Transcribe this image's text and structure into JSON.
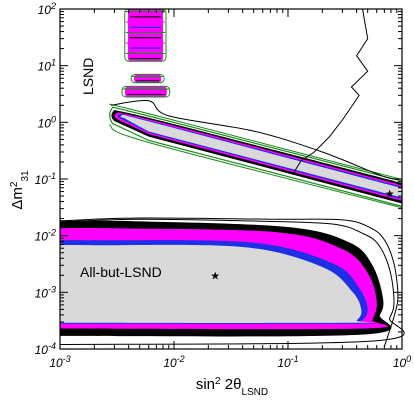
{
  "chart_data": {
    "type": "contour",
    "x_scale": "log",
    "y_scale": "log",
    "xlim": [
      0.001,
      1
    ],
    "ylim": [
      0.0001,
      100
    ],
    "xlabel": {
      "main": "sin",
      "sup": "2",
      "mid": " 2θ",
      "sub": "LSND"
    },
    "ylabel": {
      "main": "Δm",
      "sup": "2",
      "sub": "31"
    },
    "x_ticks": [
      {
        "value": 0.001,
        "base": "10",
        "exp": "-3"
      },
      {
        "value": 0.01,
        "base": "10",
        "exp": "-2"
      },
      {
        "value": 0.1,
        "base": "10",
        "exp": "-1"
      },
      {
        "value": 1,
        "base": "10",
        "exp": "0"
      }
    ],
    "y_ticks": [
      {
        "value": 0.0001,
        "base": "10",
        "exp": "-4"
      },
      {
        "value": 0.001,
        "base": "10",
        "exp": "-3"
      },
      {
        "value": 0.01,
        "base": "10",
        "exp": "-2"
      },
      {
        "value": 0.1,
        "base": "10",
        "exp": "-1"
      },
      {
        "value": 1,
        "base": "10",
        "exp": "0"
      },
      {
        "value": 10,
        "base": "10",
        "exp": "1"
      },
      {
        "value": 100,
        "base": "10",
        "exp": "2"
      }
    ],
    "annotations": [
      {
        "text": "LSND",
        "color": "#1a8c1a"
      },
      {
        "text": "All-but-LSND",
        "color": "#000000"
      }
    ],
    "markers": [
      {
        "name": "best-fit-combined",
        "symbol": "★",
        "x": 0.78,
        "y": 0.055
      },
      {
        "name": "best-fit-all-but-lsnd",
        "symbol": "★",
        "x": 0.023,
        "y": 0.002
      }
    ],
    "region_colors": {
      "innermost": "#d9d9d9",
      "blue": "#1f2fe6",
      "magenta": "#ff00ff",
      "black": "#000000",
      "lsnd": "#1a8c1a",
      "outline": "#000000"
    },
    "lower_region": {
      "levels": [
        {
          "name": "black",
          "color": "#000000",
          "x_left": 0.001,
          "y_top": 0.018,
          "y_bottom": 0.00017,
          "curve": [
            [
              0.0045,
              0.018
            ],
            [
              0.1,
              0.0142
            ],
            [
              0.35,
              0.0075
            ],
            [
              0.55,
              0.003
            ],
            [
              0.68,
              0.0008
            ],
            [
              0.64,
              0.0004
            ],
            [
              0.46,
              0.00018
            ],
            [
              0.001,
              0.00017
            ]
          ]
        },
        {
          "name": "magenta",
          "color": "#ff00ff",
          "x_left": 0.001,
          "y_top": 0.0135,
          "y_bottom": 0.00023,
          "curve": [
            [
              0.003,
              0.0135
            ],
            [
              0.08,
              0.0115
            ],
            [
              0.3,
              0.0058
            ],
            [
              0.5,
              0.0022
            ],
            [
              0.6,
              0.0007
            ],
            [
              0.55,
              0.00033
            ],
            [
              0.45,
              0.00023
            ],
            [
              0.001,
              0.00023
            ]
          ]
        },
        {
          "name": "blue",
          "color": "#1f2fe6",
          "x_left": 0.001,
          "y_top": 0.0083,
          "y_bottom": 0.00028,
          "curve": [
            [
              0.002,
              0.0083
            ],
            [
              0.05,
              0.0075
            ],
            [
              0.25,
              0.0032
            ],
            [
              0.42,
              0.0012
            ],
            [
              0.5,
              0.0005
            ],
            [
              0.44,
              0.00031
            ],
            [
              0.36,
              0.00028
            ],
            [
              0.001,
              0.00028
            ]
          ]
        },
        {
          "name": "innermost",
          "color": "#d9d9d9",
          "x_left": 0.001,
          "y_top": 0.0068,
          "y_bottom": 0.00029,
          "curve": [
            [
              0.002,
              0.0068
            ],
            [
              0.04,
              0.0063
            ],
            [
              0.2,
              0.0028
            ],
            [
              0.37,
              0.001
            ],
            [
              0.44,
              0.00048
            ],
            [
              0.4,
              0.00032
            ],
            [
              0.33,
              0.00029
            ],
            [
              0.001,
              0.00029
            ]
          ]
        }
      ]
    },
    "upper_band": {
      "center_line": [
        [
          0.0032,
          1.25
        ],
        [
          0.007,
          0.9
        ],
        [
          0.1,
          0.29
        ],
        [
          1.0,
          0.06
        ]
      ],
      "levels": [
        {
          "name": "lsnd",
          "color": "#1a8c1a",
          "upper": [
            [
              0.0029,
              1.85
            ],
            [
              0.009,
              1.05
            ],
            [
              1.0,
              0.092
            ]
          ],
          "lower": [
            [
              0.0029,
              0.95
            ],
            [
              0.006,
              0.48
            ],
            [
              1.0,
              0.033
            ]
          ]
        },
        {
          "name": "black",
          "color": "#000000",
          "upper": [
            [
              0.003,
              1.65
            ],
            [
              0.009,
              0.98
            ],
            [
              1.0,
              0.085
            ]
          ],
          "lower": [
            [
              0.003,
              1.05
            ],
            [
              0.006,
              0.56
            ],
            [
              1.0,
              0.037
            ]
          ]
        },
        {
          "name": "magenta",
          "color": "#ff00ff",
          "upper": [
            [
              0.0032,
              1.5
            ],
            [
              0.009,
              0.92
            ],
            [
              1.0,
              0.078
            ]
          ],
          "lower": [
            [
              0.0032,
              1.12
            ],
            [
              0.006,
              0.62
            ],
            [
              1.0,
              0.041
            ]
          ]
        },
        {
          "name": "blue",
          "color": "#1f2fe6",
          "upper": [
            [
              0.0034,
              1.4
            ],
            [
              0.009,
              0.87
            ],
            [
              1.0,
              0.073
            ]
          ],
          "lower": [
            [
              0.0034,
              1.17
            ],
            [
              0.006,
              0.66
            ],
            [
              1.0,
              0.044
            ]
          ]
        },
        {
          "name": "innermost",
          "color": "#d9d9d9",
          "upper": [
            [
              0.0036,
              1.35
            ],
            [
              0.009,
              0.84
            ],
            [
              1.0,
              0.069
            ]
          ],
          "lower": [
            [
              0.0036,
              1.2
            ],
            [
              0.006,
              0.69
            ],
            [
              1.0,
              0.047
            ]
          ]
        }
      ]
    },
    "islands": [
      {
        "x": [
          0.0035,
          0.0092
        ],
        "y": [
          2.8,
          4.3
        ]
      },
      {
        "x": [
          0.0042,
          0.0082
        ],
        "y": [
          5.0,
          7.0
        ]
      },
      {
        "x": [
          0.0037,
          0.0085
        ],
        "y": [
          12.0,
          100.0
        ]
      }
    ],
    "outline_curves": [
      {
        "name": "lower-outline-1",
        "points": [
          [
            0.001,
            0.0175
          ],
          [
            0.005,
            0.0195
          ],
          [
            0.06,
            0.018
          ],
          [
            0.25,
            0.016
          ],
          [
            0.45,
            0.011
          ],
          [
            0.62,
            0.007
          ],
          [
            0.78,
            0.0025
          ],
          [
            0.85,
            0.0007
          ],
          [
            0.78,
            0.00035
          ],
          [
            0.6,
            0.00014
          ],
          [
            0.001,
            0.00012
          ]
        ]
      },
      {
        "name": "lower-outline-2",
        "points": [
          [
            0.001,
            0.0182
          ],
          [
            0.005,
            0.0205
          ],
          [
            0.07,
            0.0195
          ],
          [
            0.3,
            0.019
          ],
          [
            0.52,
            0.014
          ],
          [
            0.7,
            0.0085
          ],
          [
            0.85,
            0.0032
          ],
          [
            0.92,
            0.0009
          ],
          [
            0.86,
            0.0004
          ],
          [
            0.7,
            0.00011
          ]
        ]
      },
      {
        "name": "middle-outline",
        "points": [
          [
            0.11,
            0.12
          ],
          [
            0.13,
            0.21
          ],
          [
            0.17,
            0.3
          ],
          [
            0.23,
            0.55
          ],
          [
            0.3,
            1.1
          ],
          [
            0.38,
            2.2
          ],
          [
            0.42,
            3.0
          ],
          [
            0.36,
            4.2
          ],
          [
            0.5,
            8
          ],
          [
            0.4,
            15
          ],
          [
            0.5,
            30
          ],
          [
            0.45,
            100
          ]
        ]
      },
      {
        "name": "band-outline",
        "points": [
          [
            0.0028,
            2.0
          ],
          [
            0.006,
            2.4
          ],
          [
            0.009,
            1.3
          ],
          [
            0.05,
            0.7
          ],
          [
            0.2,
            0.3
          ],
          [
            0.7,
            0.11
          ],
          [
            1.0,
            0.1
          ]
        ]
      }
    ]
  }
}
